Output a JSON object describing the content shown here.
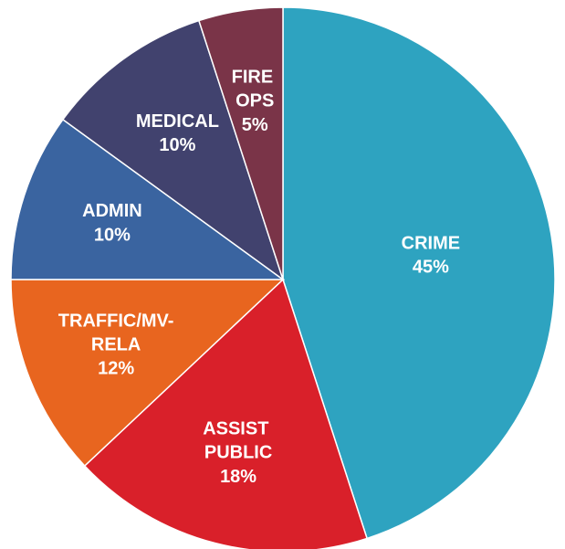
{
  "chart_data": {
    "type": "pie",
    "categories": [
      "CRIME",
      "ASSIST PUBLIC",
      "TRAFFIC/MV-RELA",
      "ADMIN",
      "MEDICAL",
      "FIRE OPS"
    ],
    "values": [
      45,
      18,
      12,
      10,
      10,
      5
    ],
    "value_labels": [
      "45%",
      "18%",
      "12%",
      "10%",
      "10%",
      "5%"
    ],
    "colors": [
      "#2ea3c0",
      "#d9202a",
      "#e8651f",
      "#3a64a0",
      "#41426e",
      "#7a3448"
    ]
  }
}
